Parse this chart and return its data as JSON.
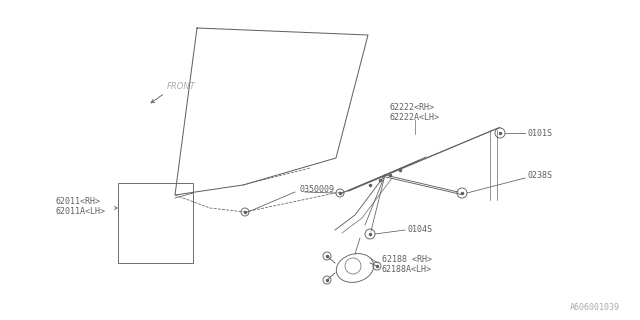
{
  "bg_color": "#ffffff",
  "line_color": "#606060",
  "text_color": "#606060",
  "watermark": "A606001039",
  "labels": {
    "front": "FRONT",
    "part1_line1": "62011<RH>",
    "part1_line2": "62011A<LH>",
    "part2_line1": "62222<RH>",
    "part2_line2": "62222A<LH>",
    "part3": "0350009",
    "part4": "0101S",
    "part5": "0238S",
    "part6": "0104S",
    "part7_line1": "62188 <RH>",
    "part7_line2": "62188A<LH>"
  },
  "figsize": [
    6.4,
    3.2
  ],
  "dpi": 100
}
